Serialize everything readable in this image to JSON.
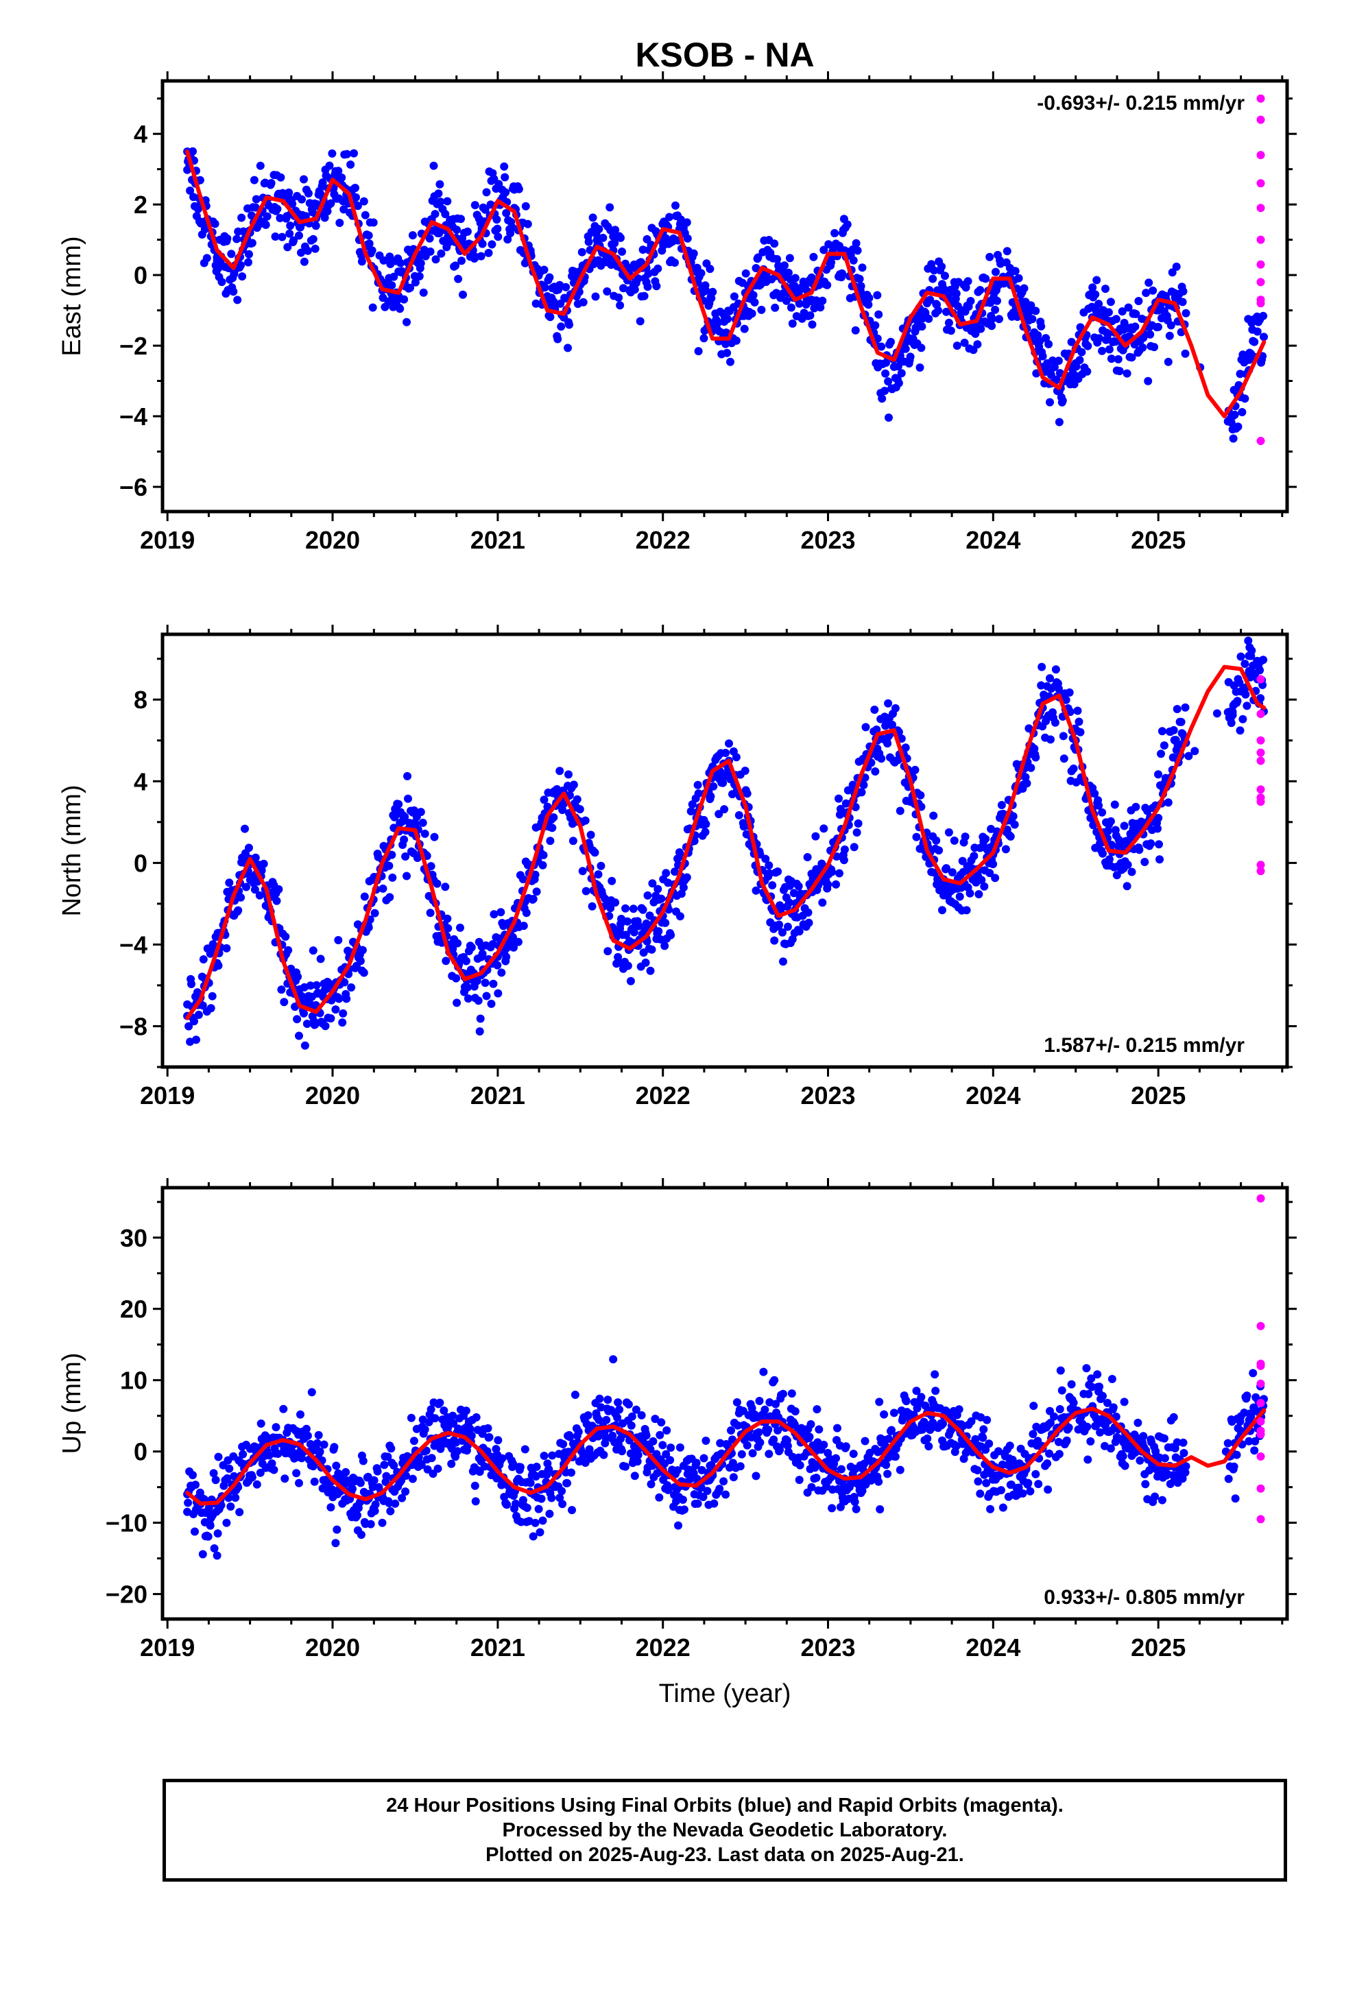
{
  "title": "KSOB - NA",
  "xlabel": "Time (year)",
  "x_ticks": [
    "2019",
    "2020",
    "2021",
    "2022",
    "2023",
    "2024",
    "2025"
  ],
  "colors": {
    "final_orbits": "#0000ff",
    "rapid_orbits": "#ff00ff",
    "model_fit": "#ff0000",
    "frame": "#000000"
  },
  "chart_data": [
    {
      "type": "scatter",
      "panel": "east",
      "ylabel": "East (mm)",
      "rate_label": "-0.693+/- 0.215 mm/yr",
      "rate_position": "top-right",
      "xlim": [
        2018.97,
        2025.78
      ],
      "ylim": [
        -6.7,
        5.5
      ],
      "yticks": [
        -6,
        -4,
        -2,
        0,
        2,
        4
      ],
      "data_range": [
        2019.12,
        2025.64
      ],
      "series": [
        {
          "name": "Final Orbits",
          "kind": "scatter",
          "x": [
            2019.12,
            2019.2,
            2019.3,
            2019.4,
            2019.5,
            2019.6,
            2019.7,
            2019.8,
            2019.9,
            2020.0,
            2020.1,
            2020.2,
            2020.3,
            2020.4,
            2020.5,
            2020.6,
            2020.7,
            2020.8,
            2020.9,
            2021.0,
            2021.1,
            2021.2,
            2021.3,
            2021.4,
            2021.5,
            2021.6,
            2021.7,
            2021.8,
            2021.9,
            2022.0,
            2022.1,
            2022.2,
            2022.3,
            2022.4,
            2022.5,
            2022.6,
            2022.7,
            2022.8,
            2022.9,
            2023.0,
            2023.1,
            2023.2,
            2023.3,
            2023.4,
            2023.5,
            2023.6,
            2023.7,
            2023.8,
            2023.9,
            2024.0,
            2024.1,
            2024.2,
            2024.3,
            2024.4,
            2024.5,
            2024.6,
            2024.7,
            2024.8,
            2024.9,
            2025.0,
            2025.1,
            2025.45,
            2025.5,
            2025.55,
            2025.6
          ],
          "y": [
            3.5,
            2.0,
            0.5,
            0.2,
            1.2,
            2.1,
            2.2,
            1.5,
            1.6,
            2.7,
            2.4,
            0.8,
            -0.2,
            -0.6,
            0.4,
            1.5,
            1.3,
            0.7,
            1.2,
            2.0,
            1.9,
            0.6,
            -0.6,
            -1.2,
            -0.2,
            0.8,
            0.7,
            0.0,
            0.2,
            1.2,
            1.3,
            0.1,
            -1.4,
            -1.9,
            -1.0,
            0.0,
            0.1,
            -0.6,
            -0.7,
            0.4,
            0.7,
            -0.5,
            -1.8,
            -2.6,
            -1.8,
            -0.8,
            -0.5,
            -1.2,
            -1.4,
            -0.2,
            0.0,
            -1.2,
            -2.3,
            -3.3,
            -2.5,
            -1.2,
            -1.3,
            -2.0,
            -1.8,
            -1.0,
            -0.8,
            -4.0,
            -3.2,
            -2.4,
            -1.6
          ]
        },
        {
          "name": "Rapid Orbits",
          "kind": "scatter",
          "x": [
            2025.62,
            2025.62,
            2025.62,
            2025.62,
            2025.62,
            2025.62,
            2025.62,
            2025.62,
            2025.62,
            2025.62,
            2025.62
          ],
          "y": [
            5.0,
            4.4,
            3.4,
            2.6,
            1.9,
            1.0,
            0.3,
            -0.2,
            -0.7,
            -0.8,
            -4.7
          ]
        },
        {
          "name": "Model",
          "kind": "line",
          "x": [
            2019.12,
            2019.2,
            2019.3,
            2019.4,
            2019.5,
            2019.6,
            2019.7,
            2019.8,
            2019.9,
            2020.0,
            2020.1,
            2020.2,
            2020.3,
            2020.4,
            2020.5,
            2020.6,
            2020.7,
            2020.8,
            2020.9,
            2021.0,
            2021.1,
            2021.2,
            2021.3,
            2021.4,
            2021.5,
            2021.6,
            2021.7,
            2021.8,
            2021.9,
            2022.0,
            2022.1,
            2022.2,
            2022.3,
            2022.4,
            2022.5,
            2022.6,
            2022.7,
            2022.8,
            2022.9,
            2023.0,
            2023.1,
            2023.2,
            2023.3,
            2023.4,
            2023.5,
            2023.6,
            2023.7,
            2023.8,
            2023.9,
            2024.0,
            2024.1,
            2024.2,
            2024.3,
            2024.4,
            2024.5,
            2024.6,
            2024.7,
            2024.8,
            2024.9,
            2025.0,
            2025.1,
            2025.2,
            2025.3,
            2025.4,
            2025.5,
            2025.64
          ],
          "y": [
            3.5,
            2.2,
            0.7,
            0.2,
            1.3,
            2.2,
            2.1,
            1.5,
            1.6,
            2.7,
            2.3,
            0.6,
            -0.4,
            -0.5,
            0.6,
            1.5,
            1.3,
            0.6,
            1.1,
            2.1,
            1.8,
            0.3,
            -1.0,
            -1.1,
            -0.1,
            0.8,
            0.6,
            -0.1,
            0.3,
            1.3,
            1.2,
            -0.4,
            -1.8,
            -1.8,
            -0.6,
            0.2,
            0.0,
            -0.7,
            -0.5,
            0.6,
            0.6,
            -0.9,
            -2.2,
            -2.4,
            -1.2,
            -0.5,
            -0.6,
            -1.4,
            -1.3,
            -0.1,
            -0.1,
            -1.6,
            -2.9,
            -3.2,
            -2.0,
            -1.2,
            -1.4,
            -2.0,
            -1.6,
            -0.7,
            -0.8,
            -2.0,
            -3.4,
            -4.0,
            -3.3,
            -1.9
          ]
        }
      ]
    },
    {
      "type": "scatter",
      "panel": "north",
      "ylabel": "North (mm)",
      "rate_label": "1.587+/- 0.215 mm/yr",
      "rate_position": "bottom-right",
      "xlim": [
        2018.97,
        2025.78
      ],
      "ylim": [
        -10.0,
        11.2
      ],
      "yticks": [
        -8,
        -4,
        0,
        4,
        8
      ],
      "data_range": [
        2019.12,
        2025.64
      ],
      "series": [
        {
          "name": "Final Orbits",
          "kind": "scatter",
          "x": [
            2019.12,
            2019.2,
            2019.3,
            2019.4,
            2019.5,
            2019.6,
            2019.7,
            2019.8,
            2019.9,
            2020.0,
            2020.1,
            2020.2,
            2020.3,
            2020.4,
            2020.5,
            2020.6,
            2020.7,
            2020.8,
            2020.9,
            2021.0,
            2021.1,
            2021.2,
            2021.3,
            2021.4,
            2021.5,
            2021.6,
            2021.7,
            2021.8,
            2021.9,
            2022.0,
            2022.1,
            2022.2,
            2022.3,
            2022.4,
            2022.5,
            2022.6,
            2022.7,
            2022.8,
            2022.9,
            2023.0,
            2023.1,
            2023.2,
            2023.3,
            2023.4,
            2023.5,
            2023.6,
            2023.7,
            2023.8,
            2023.9,
            2024.0,
            2024.1,
            2024.2,
            2024.3,
            2024.4,
            2024.5,
            2024.6,
            2024.7,
            2024.8,
            2024.9,
            2025.0,
            2025.1,
            2025.45,
            2025.5,
            2025.55,
            2025.6
          ],
          "y": [
            -7.5,
            -6.6,
            -4.4,
            -1.8,
            0.2,
            -1.2,
            -4.6,
            -6.8,
            -7.3,
            -6.5,
            -5.2,
            -3.0,
            -0.2,
            1.6,
            1.8,
            -0.8,
            -4.0,
            -5.6,
            -5.5,
            -4.6,
            -3.2,
            -0.8,
            2.0,
            3.4,
            2.0,
            -1.3,
            -3.6,
            -4.2,
            -3.7,
            -2.6,
            -0.9,
            1.8,
            4.2,
            5.0,
            2.8,
            -1.0,
            -2.6,
            -2.3,
            -1.4,
            -0.2,
            1.6,
            4.0,
            6.0,
            6.4,
            4.0,
            0.6,
            -0.8,
            -1.1,
            -0.4,
            0.4,
            2.4,
            5.0,
            7.6,
            8.2,
            6.0,
            2.6,
            0.8,
            0.6,
            1.6,
            2.2,
            6.0,
            7.4,
            8.4,
            9.4,
            9.0
          ]
        },
        {
          "name": "Rapid Orbits",
          "kind": "scatter",
          "x": [
            2025.62,
            2025.62,
            2025.62,
            2025.62,
            2025.62,
            2025.62,
            2025.62,
            2025.62,
            2025.62,
            2025.62
          ],
          "y": [
            9.0,
            7.3,
            6.0,
            5.4,
            5.0,
            3.6,
            3.2,
            3.0,
            -0.1,
            -0.4
          ]
        },
        {
          "name": "Model",
          "kind": "line",
          "x": [
            2019.12,
            2019.2,
            2019.3,
            2019.4,
            2019.5,
            2019.6,
            2019.7,
            2019.8,
            2019.9,
            2020.0,
            2020.1,
            2020.2,
            2020.3,
            2020.4,
            2020.5,
            2020.6,
            2020.7,
            2020.8,
            2020.9,
            2021.0,
            2021.1,
            2021.2,
            2021.3,
            2021.4,
            2021.5,
            2021.6,
            2021.7,
            2021.8,
            2021.9,
            2022.0,
            2022.1,
            2022.2,
            2022.3,
            2022.4,
            2022.5,
            2022.6,
            2022.7,
            2022.8,
            2022.9,
            2023.0,
            2023.1,
            2023.2,
            2023.3,
            2023.4,
            2023.5,
            2023.6,
            2023.7,
            2023.8,
            2023.9,
            2024.0,
            2024.1,
            2024.2,
            2024.3,
            2024.4,
            2024.5,
            2024.6,
            2024.7,
            2024.8,
            2024.9,
            2025.0,
            2025.1,
            2025.2,
            2025.3,
            2025.4,
            2025.5,
            2025.6,
            2025.64
          ],
          "y": [
            -7.6,
            -6.7,
            -4.3,
            -1.6,
            0.2,
            -1.3,
            -4.8,
            -7.0,
            -7.3,
            -6.3,
            -5.0,
            -2.8,
            0.0,
            1.7,
            1.6,
            -1.2,
            -4.4,
            -5.7,
            -5.4,
            -4.4,
            -2.9,
            -0.5,
            2.3,
            3.4,
            1.8,
            -1.6,
            -3.8,
            -4.2,
            -3.6,
            -2.4,
            -0.6,
            2.1,
            4.5,
            5.0,
            2.8,
            -1.0,
            -2.6,
            -2.3,
            -1.3,
            -0.1,
            1.8,
            4.3,
            6.3,
            6.5,
            4.0,
            0.6,
            -0.8,
            -1.0,
            -0.3,
            0.5,
            2.6,
            5.4,
            7.8,
            8.2,
            6.0,
            2.6,
            0.6,
            0.5,
            1.5,
            2.7,
            4.6,
            6.6,
            8.4,
            9.6,
            9.5,
            7.8,
            7.6
          ]
        }
      ]
    },
    {
      "type": "scatter",
      "panel": "up",
      "ylabel": "Up (mm)",
      "rate_label": "0.933+/- 0.805 mm/yr",
      "rate_position": "bottom-right",
      "xlim": [
        2018.97,
        2025.78
      ],
      "ylim": [
        -23.5,
        37.0
      ],
      "yticks": [
        -20,
        -10,
        0,
        10,
        20,
        30
      ],
      "data_range": [
        2019.12,
        2025.64
      ],
      "series": [
        {
          "name": "Final Orbits",
          "kind": "scatter",
          "x": [
            2019.12,
            2019.2,
            2019.3,
            2019.4,
            2019.5,
            2019.6,
            2019.7,
            2019.8,
            2019.9,
            2020.0,
            2020.1,
            2020.2,
            2020.3,
            2020.4,
            2020.5,
            2020.6,
            2020.7,
            2020.8,
            2020.9,
            2021.0,
            2021.1,
            2021.2,
            2021.3,
            2021.4,
            2021.5,
            2021.6,
            2021.7,
            2021.8,
            2021.9,
            2022.0,
            2022.1,
            2022.2,
            2022.3,
            2022.4,
            2022.5,
            2022.6,
            2022.7,
            2022.8,
            2022.9,
            2023.0,
            2023.1,
            2023.2,
            2023.3,
            2023.4,
            2023.5,
            2023.6,
            2023.7,
            2023.8,
            2023.9,
            2024.0,
            2024.1,
            2024.2,
            2024.3,
            2024.4,
            2024.5,
            2024.6,
            2024.7,
            2024.8,
            2024.9,
            2025.0,
            2025.1,
            2025.45,
            2025.5,
            2025.55,
            2025.6
          ],
          "y": [
            -6.0,
            -7.4,
            -7.2,
            -4.8,
            -1.6,
            0.8,
            1.6,
            1.0,
            -1.2,
            -4.0,
            -6.0,
            -6.7,
            -5.8,
            -3.4,
            -0.4,
            1.8,
            2.6,
            2.0,
            0.0,
            -2.8,
            -5.0,
            -5.8,
            -4.9,
            -2.2,
            1.0,
            3.2,
            3.5,
            2.4,
            0.0,
            -2.6,
            -4.6,
            -4.8,
            -3.0,
            0.0,
            2.8,
            4.2,
            4.2,
            2.6,
            0.0,
            -2.6,
            -3.8,
            -3.6,
            -1.6,
            1.4,
            4.2,
            5.4,
            5.0,
            2.8,
            0.0,
            -2.2,
            -3.0,
            -2.2,
            0.4,
            3.2,
            5.4,
            6.0,
            5.0,
            2.6,
            0.0,
            -1.8,
            -2.2,
            -0.2,
            2.4,
            4.4,
            5.6
          ]
        },
        {
          "name": "Rapid Orbits",
          "kind": "scatter",
          "x": [
            2025.62,
            2025.62,
            2025.62,
            2025.62,
            2025.62,
            2025.62,
            2025.62,
            2025.62,
            2025.62,
            2025.62,
            2025.62,
            2025.62
          ],
          "y": [
            35.5,
            17.6,
            12.3,
            12.0,
            9.5,
            6.8,
            4.2,
            2.9,
            2.4,
            -0.7,
            -5.2,
            -9.5
          ]
        },
        {
          "name": "Model",
          "kind": "line",
          "x": [
            2019.12,
            2019.2,
            2019.3,
            2019.4,
            2019.5,
            2019.6,
            2019.7,
            2019.8,
            2019.9,
            2020.0,
            2020.1,
            2020.2,
            2020.3,
            2020.4,
            2020.5,
            2020.6,
            2020.7,
            2020.8,
            2020.9,
            2021.0,
            2021.1,
            2021.2,
            2021.3,
            2021.4,
            2021.5,
            2021.6,
            2021.7,
            2021.8,
            2021.9,
            2022.0,
            2022.1,
            2022.2,
            2022.3,
            2022.4,
            2022.5,
            2022.6,
            2022.7,
            2022.8,
            2022.9,
            2023.0,
            2023.1,
            2023.2,
            2023.3,
            2023.4,
            2023.5,
            2023.6,
            2023.7,
            2023.8,
            2023.9,
            2024.0,
            2024.1,
            2024.2,
            2024.3,
            2024.4,
            2024.5,
            2024.6,
            2024.7,
            2024.8,
            2024.9,
            2025.0,
            2025.1,
            2025.2,
            2025.3,
            2025.4,
            2025.5,
            2025.64
          ],
          "y": [
            -5.8,
            -7.3,
            -7.2,
            -4.8,
            -1.6,
            0.9,
            1.6,
            1.0,
            -1.2,
            -4.0,
            -6.0,
            -6.7,
            -5.8,
            -3.4,
            -0.4,
            1.8,
            2.6,
            2.0,
            0.0,
            -2.8,
            -5.0,
            -5.8,
            -4.9,
            -2.2,
            1.0,
            3.2,
            3.5,
            2.4,
            0.0,
            -2.6,
            -4.6,
            -4.8,
            -3.0,
            0.0,
            2.8,
            4.2,
            4.2,
            2.6,
            0.0,
            -2.6,
            -3.8,
            -3.6,
            -1.6,
            1.4,
            4.2,
            5.4,
            5.0,
            2.8,
            0.0,
            -2.2,
            -3.0,
            -2.2,
            0.4,
            3.2,
            5.4,
            6.0,
            5.0,
            2.6,
            0.0,
            -1.8,
            -2.0,
            -0.8,
            -2.0,
            -1.4,
            1.8,
            5.8
          ]
        }
      ]
    }
  ],
  "caption": {
    "line1": "24 Hour Positions Using Final Orbits (blue) and Rapid Orbits (magenta).",
    "line2": "Processed by the Nevada Geodetic Laboratory.",
    "line3": "Plotted on 2025-Aug-23. Last data on 2025-Aug-21."
  }
}
